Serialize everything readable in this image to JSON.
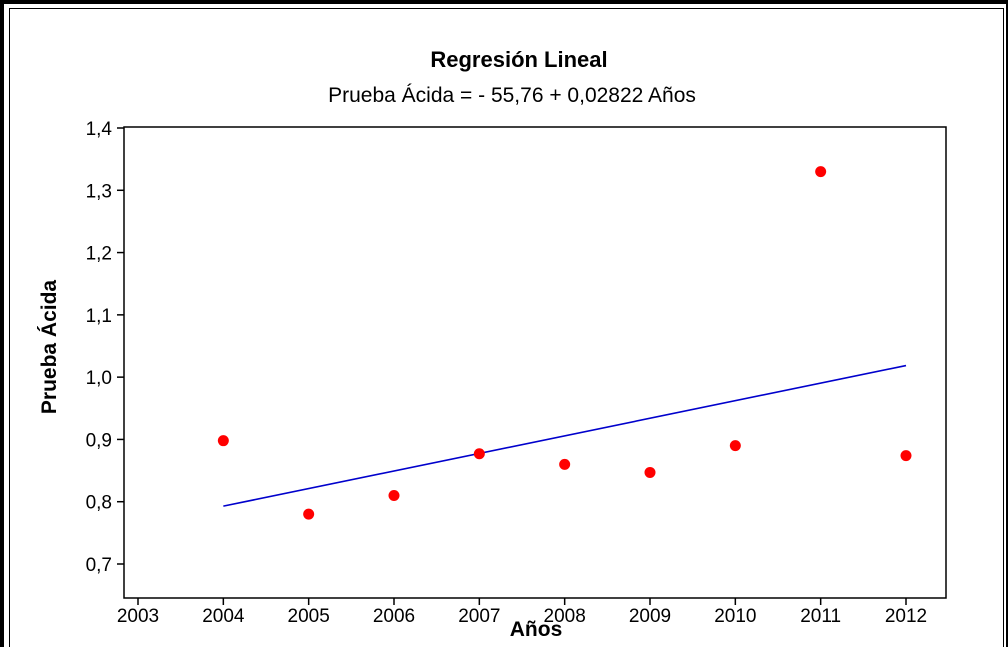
{
  "chart_data": {
    "type": "scatter",
    "title": "Regresión Lineal",
    "subtitle": "Prueba Ácida =  - 55,76 + 0,02822 Años",
    "xlabel": "Años",
    "ylabel": "Prueba Ácida",
    "xlim": [
      2003,
      2012
    ],
    "ylim": [
      0.7,
      1.4
    ],
    "x_ticks": [
      2003,
      2004,
      2005,
      2006,
      2007,
      2008,
      2009,
      2010,
      2011,
      2012
    ],
    "x_tick_labels": [
      "2003",
      "2004",
      "2005",
      "2006",
      "2007",
      "2008",
      "2009",
      "2010",
      "2011",
      "2012"
    ],
    "y_ticks": [
      0.7,
      0.8,
      0.9,
      1.0,
      1.1,
      1.2,
      1.3,
      1.4
    ],
    "y_tick_labels": [
      "0,7",
      "0,8",
      "0,9",
      "1,0",
      "1,1",
      "1,2",
      "1,3",
      "1,4"
    ],
    "grid": false,
    "points": {
      "x": [
        2004,
        2005,
        2006,
        2007,
        2008,
        2009,
        2010,
        2011,
        2012
      ],
      "y": [
        0.898,
        0.78,
        0.81,
        0.877,
        0.86,
        0.847,
        0.89,
        1.33,
        0.874
      ],
      "color": "#ff0000"
    },
    "fit_line": {
      "intercept": -55.76,
      "slope": 0.02822,
      "x_range": [
        2004,
        2012
      ],
      "color": "#0000cc"
    }
  }
}
